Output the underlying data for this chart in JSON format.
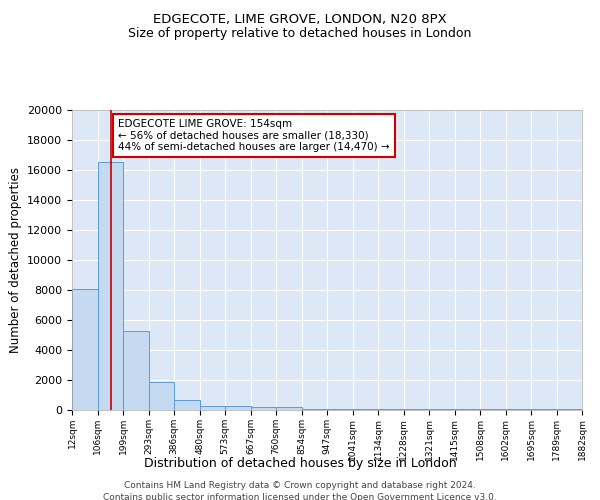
{
  "title1": "EDGECOTE, LIME GROVE, LONDON, N20 8PX",
  "title2": "Size of property relative to detached houses in London",
  "xlabel": "Distribution of detached houses by size in London",
  "ylabel": "Number of detached properties",
  "bin_edges": [
    12,
    106,
    199,
    293,
    386,
    480,
    573,
    667,
    760,
    854,
    947,
    1041,
    1134,
    1228,
    1321,
    1415,
    1508,
    1602,
    1695,
    1789,
    1882
  ],
  "bar_heights": [
    8100,
    16500,
    5300,
    1850,
    700,
    300,
    250,
    200,
    200,
    100,
    100,
    100,
    100,
    100,
    100,
    100,
    100,
    100,
    100,
    100
  ],
  "bar_color": "#c5d9f0",
  "bar_edge_color": "#5b9bd5",
  "background_color": "#dce8f5",
  "grid_color": "#ffffff",
  "red_line_x": 154,
  "annotation_text": "EDGECOTE LIME GROVE: 154sqm\n← 56% of detached houses are smaller (18,330)\n44% of semi-detached houses are larger (14,470) →",
  "annotation_box_color": "#ffffff",
  "annotation_box_edge": "#cc0000",
  "ylim": [
    0,
    20000
  ],
  "yticks": [
    0,
    2000,
    4000,
    6000,
    8000,
    10000,
    12000,
    14000,
    16000,
    18000,
    20000
  ],
  "footer1": "Contains HM Land Registry data © Crown copyright and database right 2024.",
  "footer2": "Contains public sector information licensed under the Open Government Licence v3.0."
}
